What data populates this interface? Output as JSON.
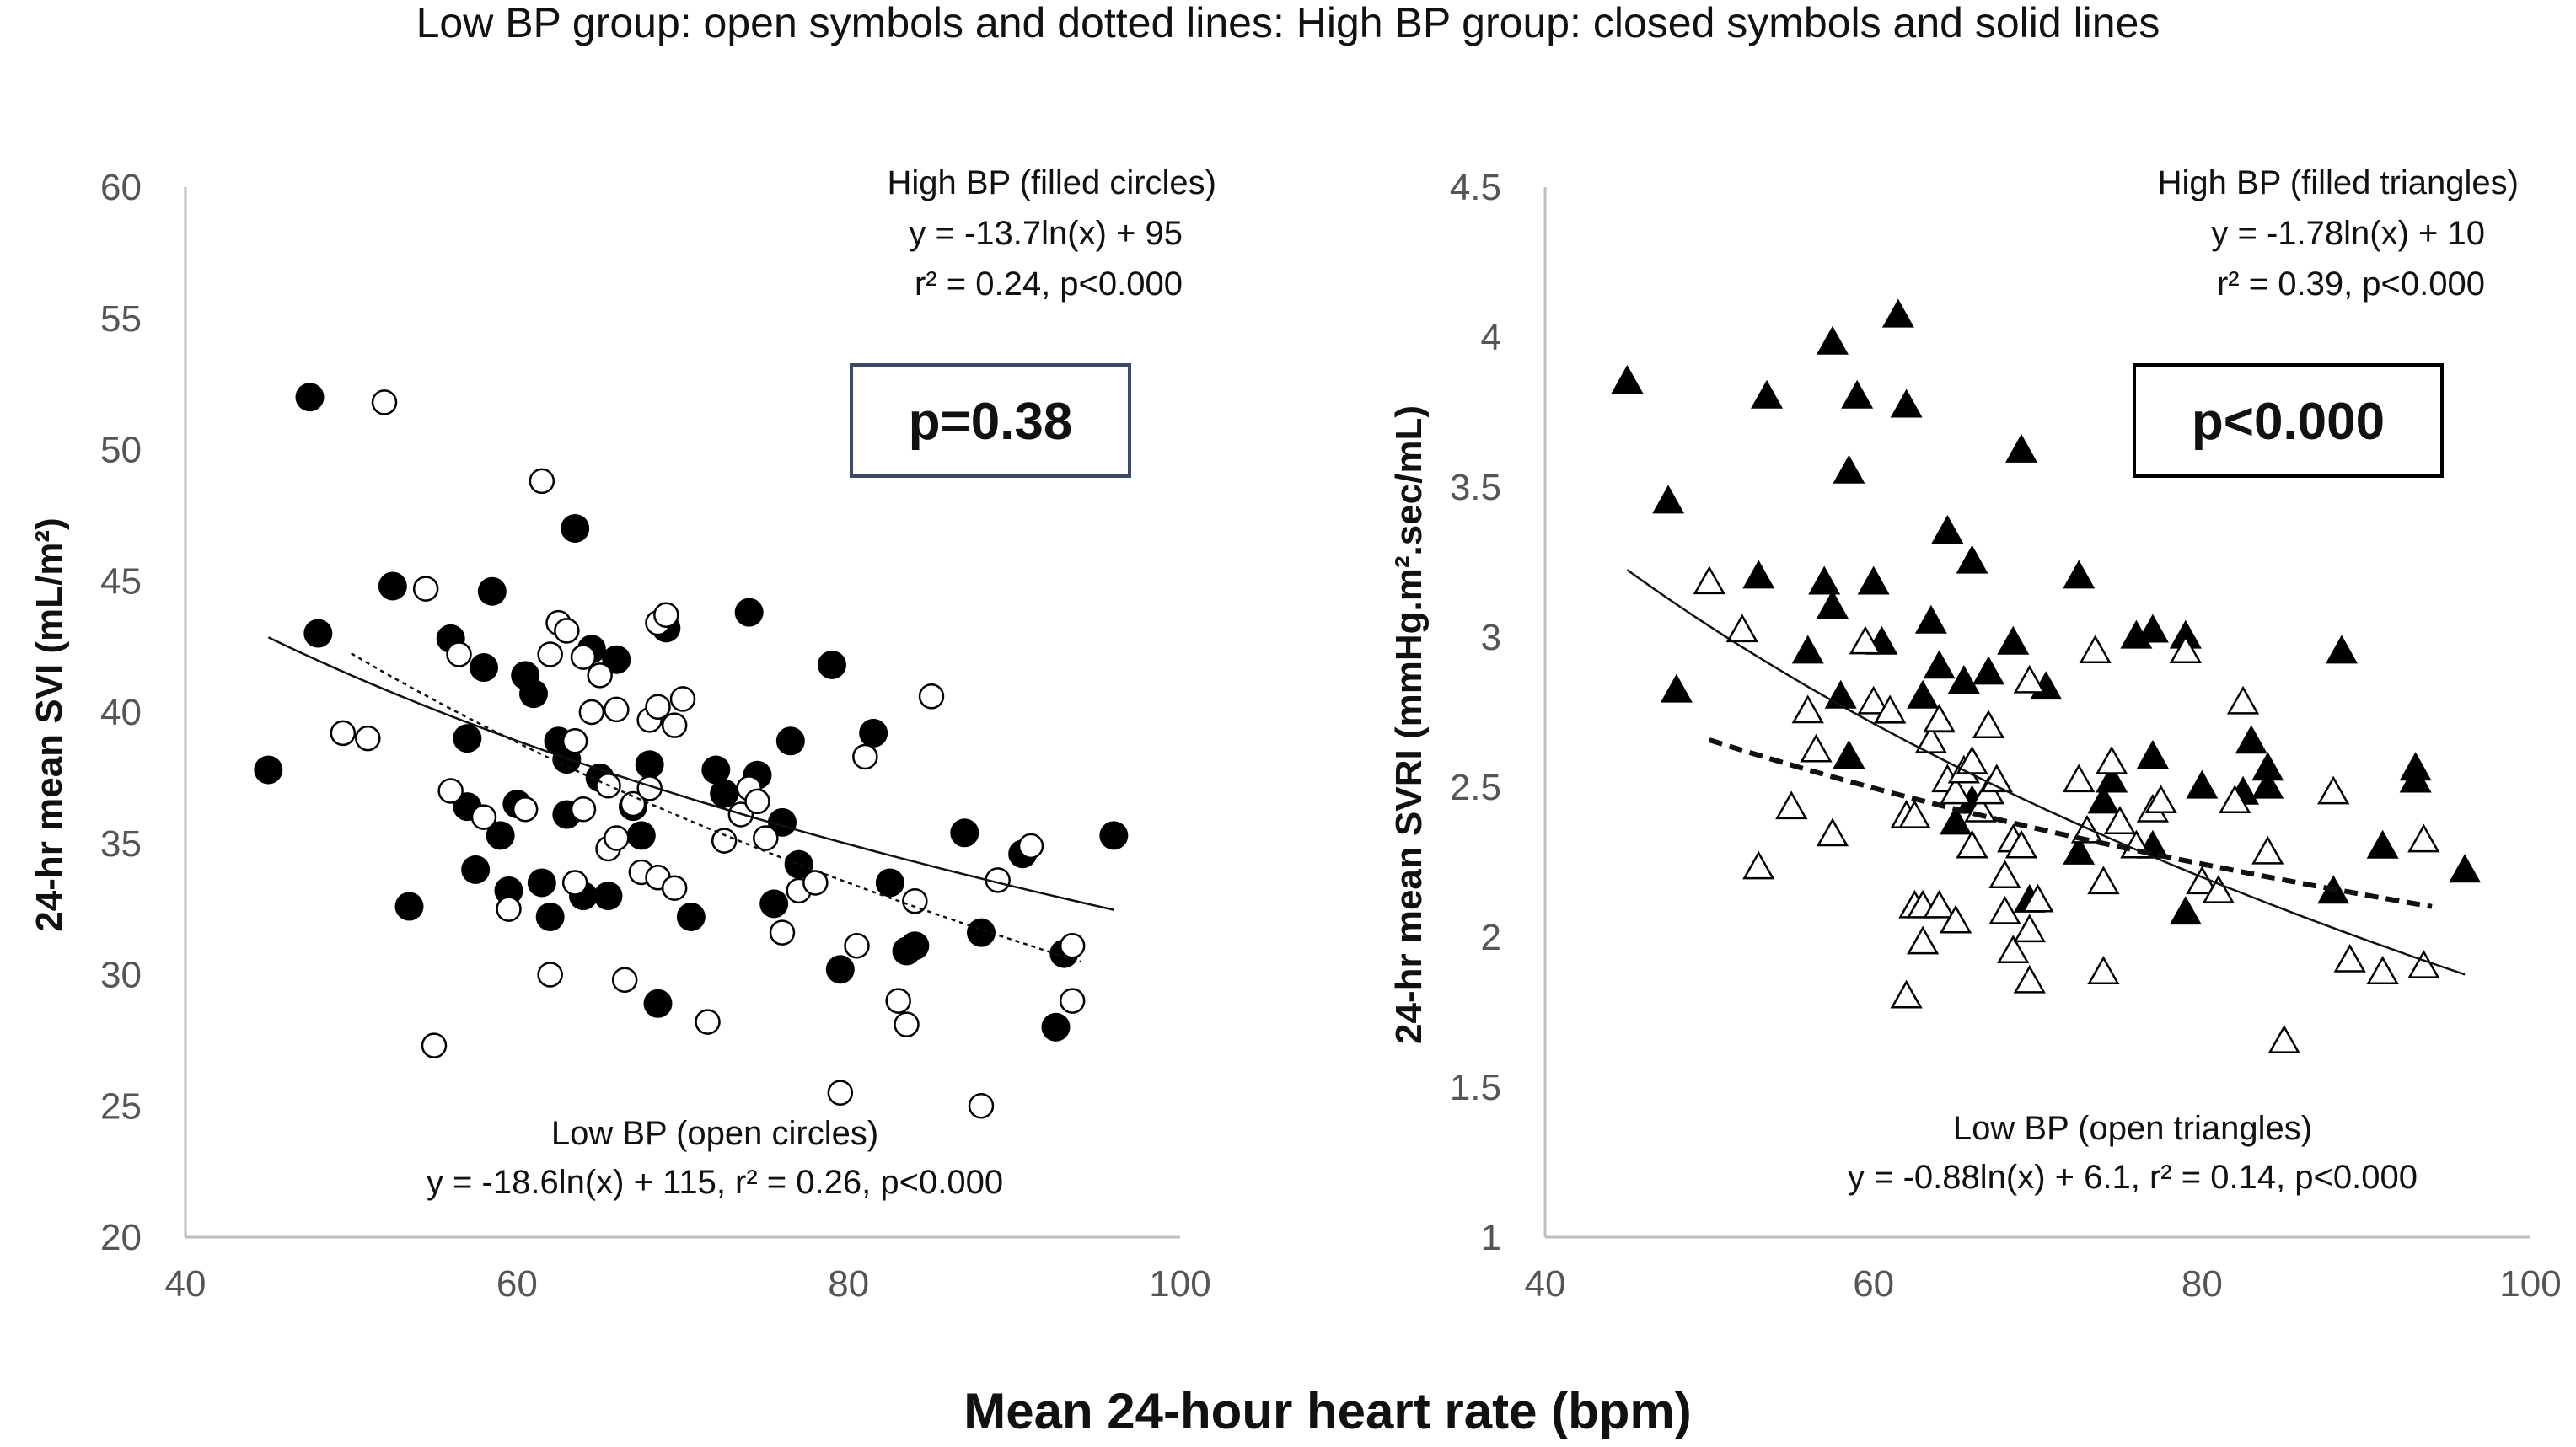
{
  "figure": {
    "title": "Low BP group: open symbols and dotted lines: High BP group: closed symbols and solid lines",
    "xlabel": "Mean 24-hour heart rate (bpm)"
  },
  "chart_data": [
    {
      "type": "scatter",
      "ylabel": "24-hr mean SVI (mL/m²)",
      "xlim": [
        40,
        100
      ],
      "ylim": [
        20,
        60
      ],
      "x_ticks": [
        "40",
        "60",
        "80",
        "100"
      ],
      "y_ticks": [
        "20",
        "25",
        "30",
        "35",
        "40",
        "45",
        "50",
        "55",
        "60"
      ],
      "p_box": "p=0.38",
      "high_annotation": [
        "High BP (filled circles)",
        "y = -13.7ln(x) + 95",
        "r² = 0.24, p<0.000"
      ],
      "low_annotation": [
        "Low BP (open circles)",
        "y = -18.6ln(x) + 115, r² = 0.26, p<0.000"
      ],
      "high_fit": {
        "a": -13.7,
        "b": 95,
        "x_range": [
          45,
          96
        ]
      },
      "low_fit": {
        "a": -18.6,
        "b": 115,
        "x_range": [
          50,
          94
        ]
      },
      "series": [
        {
          "marker": "filled-circle",
          "points": [
            [
              45,
              37.8
            ],
            [
              47.5,
              52
            ],
            [
              48,
              43
            ],
            [
              52.5,
              44.8
            ],
            [
              53.5,
              32.6
            ],
            [
              56,
              42.8
            ],
            [
              57,
              36.4
            ],
            [
              57,
              39
            ],
            [
              57.5,
              34
            ],
            [
              58,
              41.7
            ],
            [
              58.5,
              44.6
            ],
            [
              59,
              35.3
            ],
            [
              59.5,
              33.2
            ],
            [
              60,
              36.5
            ],
            [
              60.5,
              41.4
            ],
            [
              61,
              40.7
            ],
            [
              61.5,
              33.5
            ],
            [
              62,
              32.2
            ],
            [
              62.5,
              38.9
            ],
            [
              63,
              38.2
            ],
            [
              63.5,
              47
            ],
            [
              63,
              36.1
            ],
            [
              64,
              33
            ],
            [
              64.5,
              42.4
            ],
            [
              65,
              37.5
            ],
            [
              65.5,
              33
            ],
            [
              66,
              42
            ],
            [
              67,
              36.4
            ],
            [
              67.5,
              35.3
            ],
            [
              68,
              38
            ],
            [
              68.5,
              28.9
            ],
            [
              69,
              43.2
            ],
            [
              70.5,
              32.2
            ],
            [
              72,
              37.8
            ],
            [
              72.5,
              36.9
            ],
            [
              74,
              43.8
            ],
            [
              74.5,
              37.6
            ],
            [
              75.5,
              32.7
            ],
            [
              76,
              35.8
            ],
            [
              76.5,
              38.9
            ],
            [
              77,
              34.2
            ],
            [
              79,
              41.8
            ],
            [
              79.5,
              30.2
            ],
            [
              81.5,
              39.2
            ],
            [
              82.5,
              33.5
            ],
            [
              83.5,
              30.9
            ],
            [
              84,
              31.1
            ],
            [
              87,
              35.4
            ],
            [
              88,
              31.6
            ],
            [
              90.5,
              34.6
            ],
            [
              92.5,
              28
            ],
            [
              93,
              30.8
            ],
            [
              96,
              35.3
            ]
          ]
        },
        {
          "marker": "open-circle",
          "points": [
            [
              49.5,
              39.2
            ],
            [
              51,
              39
            ],
            [
              52,
              51.8
            ],
            [
              54.5,
              44.7
            ],
            [
              55,
              27.3
            ],
            [
              56,
              37
            ],
            [
              56.5,
              42.2
            ],
            [
              58,
              36
            ],
            [
              59.5,
              32.5
            ],
            [
              60.5,
              36.3
            ],
            [
              61.5,
              48.8
            ],
            [
              62,
              42.2
            ],
            [
              62,
              30
            ],
            [
              62.5,
              43.4
            ],
            [
              63,
              43.1
            ],
            [
              63.5,
              38.9
            ],
            [
              63.5,
              33.5
            ],
            [
              64,
              42.1
            ],
            [
              64,
              36.3
            ],
            [
              64.5,
              40
            ],
            [
              65,
              41.4
            ],
            [
              65.5,
              34.8
            ],
            [
              65.5,
              37.2
            ],
            [
              66,
              35.2
            ],
            [
              66,
              40.1
            ],
            [
              66.5,
              29.8
            ],
            [
              67,
              36.5
            ],
            [
              67.5,
              33.9
            ],
            [
              68,
              37.1
            ],
            [
              68,
              39.7
            ],
            [
              68.5,
              43.4
            ],
            [
              68.5,
              40.2
            ],
            [
              68.5,
              33.7
            ],
            [
              69,
              43.7
            ],
            [
              69.5,
              33.3
            ],
            [
              69.5,
              39.5
            ],
            [
              70,
              40.5
            ],
            [
              71.5,
              28.2
            ],
            [
              72.5,
              35.1
            ],
            [
              73.5,
              36.1
            ],
            [
              74,
              37.1
            ],
            [
              74.5,
              36.6
            ],
            [
              75,
              35.2
            ],
            [
              76,
              31.6
            ],
            [
              77,
              33.2
            ],
            [
              78,
              33.5
            ],
            [
              79.5,
              25.5
            ],
            [
              80.5,
              31.1
            ],
            [
              81,
              38.3
            ],
            [
              83,
              29
            ],
            [
              83.5,
              28.1
            ],
            [
              84,
              32.8
            ],
            [
              85,
              40.6
            ],
            [
              88,
              25
            ],
            [
              89,
              33.6
            ],
            [
              91,
              34.9
            ],
            [
              93.5,
              29
            ],
            [
              93.5,
              31.1
            ]
          ]
        }
      ]
    },
    {
      "type": "scatter",
      "ylabel": "24-hr mean SVRI (mmHg.m².sec/mL)",
      "xlim": [
        40,
        100
      ],
      "ylim": [
        1,
        4.5
      ],
      "x_ticks": [
        "40",
        "60",
        "80",
        "100"
      ],
      "y_ticks": [
        "1",
        "1.5",
        "2",
        "2.5",
        "3",
        "3.5",
        "4",
        "4.5"
      ],
      "p_box": "p<0.000",
      "high_annotation": [
        "High BP (filled triangles)",
        "y = -1.78ln(x) + 10",
        "r² = 0.39, p<0.000"
      ],
      "low_annotation": [
        "Low BP (open triangles)",
        "y = -0.88ln(x) + 6.1, r² = 0.14, p<0.000"
      ],
      "high_fit": {
        "a": -1.78,
        "b": 10,
        "x_range": [
          45,
          96
        ]
      },
      "low_fit": {
        "a": -0.88,
        "b": 6.1,
        "x_range": [
          50,
          94
        ]
      },
      "series": [
        {
          "marker": "filled-triangle",
          "points": [
            [
              45,
              3.85
            ],
            [
              47.5,
              3.45
            ],
            [
              48,
              2.82
            ],
            [
              53,
              3.2
            ],
            [
              53.5,
              3.8
            ],
            [
              56,
              2.95
            ],
            [
              57,
              3.18
            ],
            [
              57.5,
              3.98
            ],
            [
              57.5,
              3.1
            ],
            [
              58,
              2.8
            ],
            [
              58.5,
              3.55
            ],
            [
              58.5,
              2.6
            ],
            [
              59,
              3.8
            ],
            [
              60,
              3.18
            ],
            [
              60.5,
              2.98
            ],
            [
              61,
              2.75
            ],
            [
              61.5,
              4.07
            ],
            [
              62,
              3.77
            ],
            [
              63,
              2.8
            ],
            [
              63.5,
              3.05
            ],
            [
              64,
              2.72
            ],
            [
              64,
              2.9
            ],
            [
              64.5,
              3.35
            ],
            [
              65,
              2.38
            ],
            [
              65.5,
              2.85
            ],
            [
              66,
              3.25
            ],
            [
              66,
              2.45
            ],
            [
              67,
              2.88
            ],
            [
              68.5,
              2.98
            ],
            [
              69,
              3.62
            ],
            [
              69.5,
              2.12
            ],
            [
              70.5,
              2.83
            ],
            [
              72.5,
              3.2
            ],
            [
              72.5,
              2.28
            ],
            [
              74,
              2.45
            ],
            [
              74.5,
              2.52
            ],
            [
              76,
              3
            ],
            [
              77,
              2.6
            ],
            [
              77,
              3.02
            ],
            [
              77,
              2.3
            ],
            [
              79,
              3
            ],
            [
              79,
              2.08
            ],
            [
              80,
              2.5
            ],
            [
              82.5,
              2.48
            ],
            [
              83,
              2.65
            ],
            [
              84,
              2.5
            ],
            [
              84,
              2.56
            ],
            [
              88,
              2.15
            ],
            [
              88.5,
              2.95
            ],
            [
              91,
              2.3
            ],
            [
              93,
              2.52
            ],
            [
              93,
              2.56
            ],
            [
              96,
              2.22
            ]
          ]
        },
        {
          "marker": "open-triangle",
          "points": [
            [
              50,
              3.18
            ],
            [
              52,
              3.02
            ],
            [
              53,
              2.23
            ],
            [
              55,
              2.43
            ],
            [
              56,
              2.75
            ],
            [
              56.5,
              2.62
            ],
            [
              57.5,
              2.34
            ],
            [
              59.5,
              2.98
            ],
            [
              60,
              2.78
            ],
            [
              61,
              2.75
            ],
            [
              62,
              2.4
            ],
            [
              62,
              1.8
            ],
            [
              62.5,
              2.4
            ],
            [
              62.5,
              2.1
            ],
            [
              63,
              2.1
            ],
            [
              63,
              1.98
            ],
            [
              63.5,
              2.65
            ],
            [
              64,
              2.72
            ],
            [
              64,
              2.1
            ],
            [
              64.5,
              2.52
            ],
            [
              65,
              2.48
            ],
            [
              65,
              2.05
            ],
            [
              65.5,
              2.55
            ],
            [
              66,
              2.58
            ],
            [
              66,
              2.3
            ],
            [
              66.5,
              2.42
            ],
            [
              67,
              2.7
            ],
            [
              67,
              2.48
            ],
            [
              67.5,
              2.52
            ],
            [
              68,
              2.2
            ],
            [
              68,
              2.08
            ],
            [
              68.5,
              1.95
            ],
            [
              68.5,
              2.32
            ],
            [
              69,
              2.3
            ],
            [
              69.5,
              2.85
            ],
            [
              69.5,
              2.02
            ],
            [
              69.5,
              1.85
            ],
            [
              70,
              2.12
            ],
            [
              72.5,
              2.52
            ],
            [
              73,
              2.35
            ],
            [
              73.5,
              2.95
            ],
            [
              74,
              2.18
            ],
            [
              74.5,
              2.58
            ],
            [
              75,
              2.38
            ],
            [
              76,
              2.3
            ],
            [
              77,
              2.42
            ],
            [
              77.5,
              2.45
            ],
            [
              79,
              2.95
            ],
            [
              80,
              2.18
            ],
            [
              81,
              2.15
            ],
            [
              82,
              2.45
            ],
            [
              82.5,
              2.78
            ],
            [
              84,
              2.28
            ],
            [
              85,
              1.65
            ],
            [
              88,
              2.48
            ],
            [
              89,
              1.92
            ],
            [
              91,
              1.88
            ],
            [
              93.5,
              1.9
            ],
            [
              93.5,
              2.32
            ],
            [
              74,
              1.88
            ]
          ]
        }
      ]
    }
  ]
}
